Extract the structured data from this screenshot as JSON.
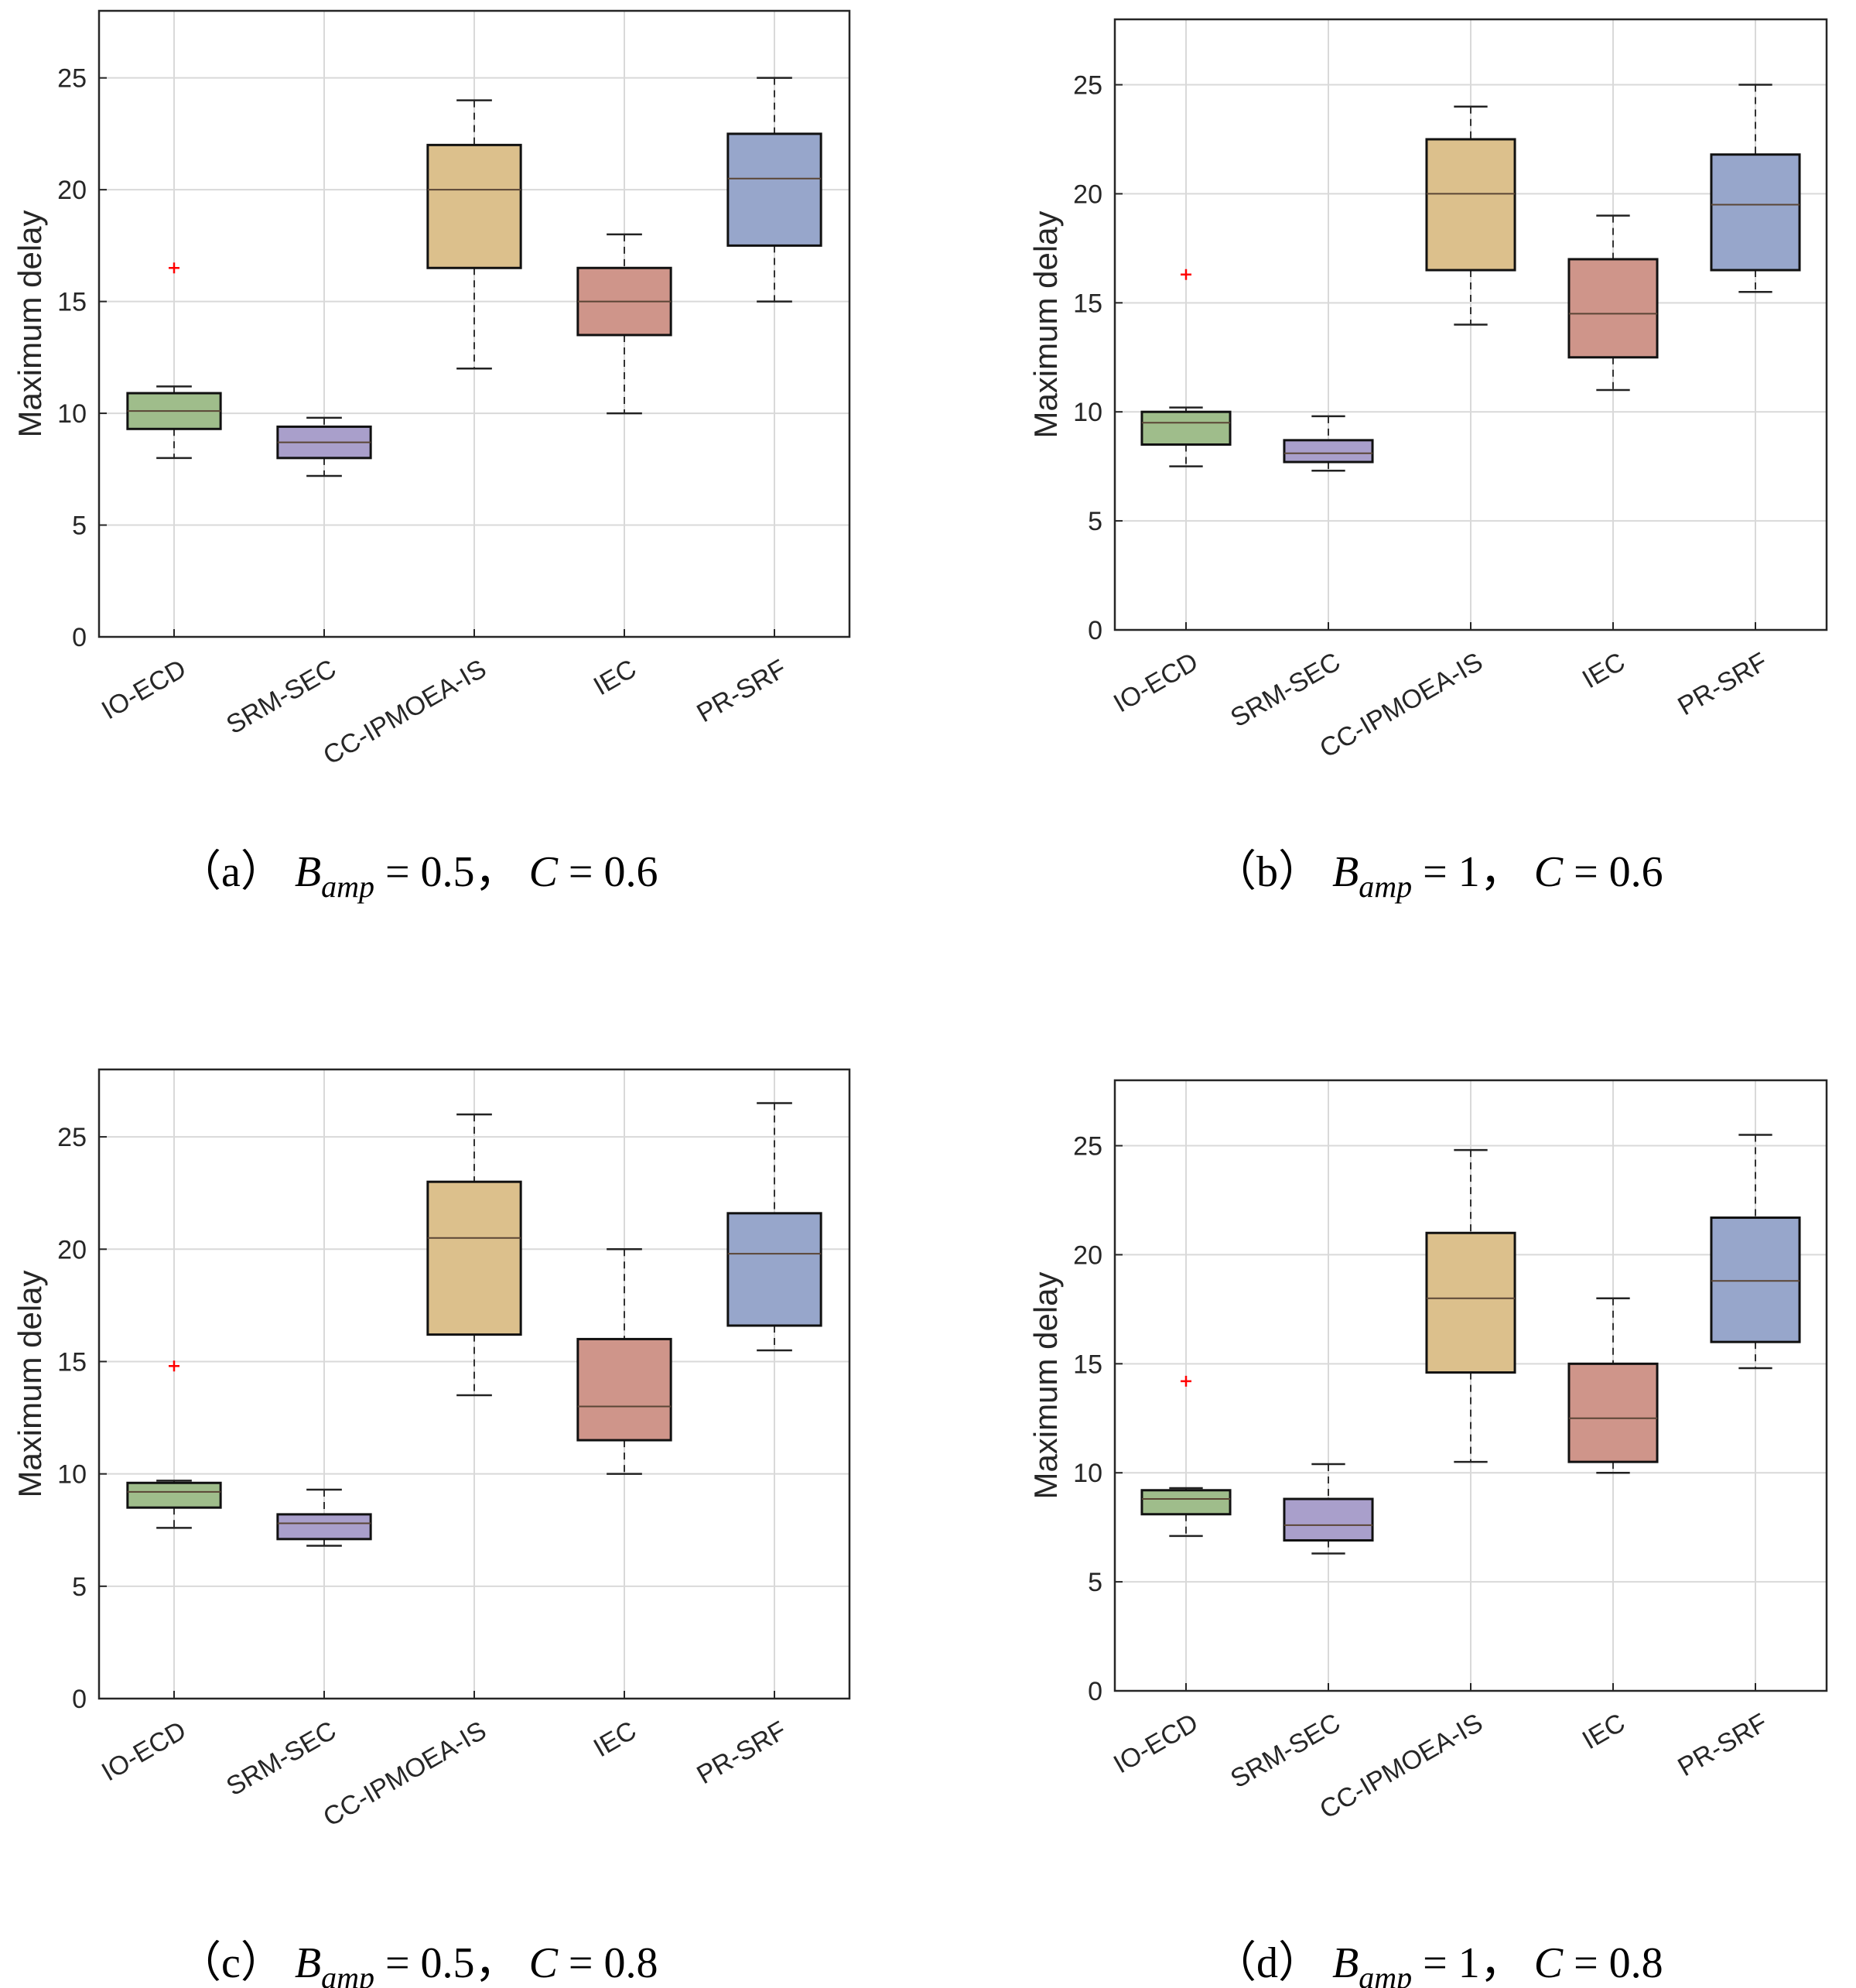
{
  "colors": {
    "IO-ECD": "#9fbd8b",
    "SRM-SEC": "#a99fcb",
    "CC-IPMOEA-IS": "#dcc08c",
    "IEC": "#cf958a",
    "PR-SRF": "#97a6cb",
    "outlier": "#ff0000",
    "grid": "#d9d9d9"
  },
  "chart_data": [
    {
      "type": "box",
      "id": "a",
      "caption": {
        "label": "（a）",
        "var": "B",
        "sub": "amp",
        "eq1": " = 0.5，",
        "var2": "C",
        "eq2": " = 0.6"
      },
      "ylabel": "Maximum delay",
      "ylim": [
        0,
        28
      ],
      "yticks": [
        0,
        5,
        10,
        15,
        20,
        25
      ],
      "categories": [
        "IO-ECD",
        "SRM-SEC",
        "CC-IPMOEA-IS",
        "IEC",
        "PR-SRF"
      ],
      "boxes": [
        {
          "min": 8.0,
          "q1": 9.3,
          "median": 10.1,
          "q3": 10.9,
          "max": 11.2,
          "outliers": [
            16.5
          ]
        },
        {
          "min": 7.2,
          "q1": 8.0,
          "median": 8.7,
          "q3": 9.4,
          "max": 9.8,
          "outliers": []
        },
        {
          "min": 12.0,
          "q1": 16.5,
          "median": 20.0,
          "q3": 22.0,
          "max": 24.0,
          "outliers": []
        },
        {
          "min": 10.0,
          "q1": 13.5,
          "median": 15.0,
          "q3": 16.5,
          "max": 18.0,
          "outliers": []
        },
        {
          "min": 15.0,
          "q1": 17.5,
          "median": 20.5,
          "q3": 22.5,
          "max": 25.0,
          "outliers": []
        }
      ]
    },
    {
      "type": "box",
      "id": "b",
      "caption": {
        "label": "（b）",
        "var": "B",
        "sub": "amp",
        "eq1": " = 1，",
        "var2": "C",
        "eq2": " = 0.6"
      },
      "ylabel": "Maximum delay",
      "ylim": [
        0,
        28
      ],
      "yticks": [
        0,
        5,
        10,
        15,
        20,
        25
      ],
      "categories": [
        "IO-ECD",
        "SRM-SEC",
        "CC-IPMOEA-IS",
        "IEC",
        "PR-SRF"
      ],
      "boxes": [
        {
          "min": 7.5,
          "q1": 8.5,
          "median": 9.5,
          "q3": 10.0,
          "max": 10.2,
          "outliers": [
            16.3
          ]
        },
        {
          "min": 7.3,
          "q1": 7.7,
          "median": 8.1,
          "q3": 8.7,
          "max": 9.8,
          "outliers": []
        },
        {
          "min": 14.0,
          "q1": 16.5,
          "median": 20.0,
          "q3": 22.5,
          "max": 24.0,
          "outliers": []
        },
        {
          "min": 11.0,
          "q1": 12.5,
          "median": 14.5,
          "q3": 17.0,
          "max": 19.0,
          "outliers": []
        },
        {
          "min": 15.5,
          "q1": 16.5,
          "median": 19.5,
          "q3": 21.8,
          "max": 25.0,
          "outliers": []
        }
      ]
    },
    {
      "type": "box",
      "id": "c",
      "caption": {
        "label": "（c）",
        "var": "B",
        "sub": "amp",
        "eq1": " = 0.5，",
        "var2": "C",
        "eq2": " = 0.8"
      },
      "ylabel": "Maximum delay",
      "ylim": [
        0,
        28
      ],
      "yticks": [
        0,
        5,
        10,
        15,
        20,
        25
      ],
      "categories": [
        "IO-ECD",
        "SRM-SEC",
        "CC-IPMOEA-IS",
        "IEC",
        "PR-SRF"
      ],
      "boxes": [
        {
          "min": 7.6,
          "q1": 8.5,
          "median": 9.2,
          "q3": 9.6,
          "max": 9.7,
          "outliers": [
            14.8
          ]
        },
        {
          "min": 6.8,
          "q1": 7.1,
          "median": 7.8,
          "q3": 8.2,
          "max": 9.3,
          "outliers": []
        },
        {
          "min": 13.5,
          "q1": 16.2,
          "median": 20.5,
          "q3": 23.0,
          "max": 26.0,
          "outliers": []
        },
        {
          "min": 10.0,
          "q1": 11.5,
          "median": 13.0,
          "q3": 16.0,
          "max": 20.0,
          "outliers": []
        },
        {
          "min": 15.5,
          "q1": 16.6,
          "median": 19.8,
          "q3": 21.6,
          "max": 26.5,
          "outliers": []
        }
      ]
    },
    {
      "type": "box",
      "id": "d",
      "caption": {
        "label": "（d）",
        "var": "B",
        "sub": "amp",
        "eq1": " = 1，",
        "var2": "C",
        "eq2": " = 0.8"
      },
      "ylabel": "Maximum delay",
      "ylim": [
        0,
        28
      ],
      "yticks": [
        0,
        5,
        10,
        15,
        20,
        25
      ],
      "categories": [
        "IO-ECD",
        "SRM-SEC",
        "CC-IPMOEA-IS",
        "IEC",
        "PR-SRF"
      ],
      "boxes": [
        {
          "min": 7.1,
          "q1": 8.1,
          "median": 8.8,
          "q3": 9.2,
          "max": 9.3,
          "outliers": [
            14.2
          ]
        },
        {
          "min": 6.3,
          "q1": 6.9,
          "median": 7.6,
          "q3": 8.8,
          "max": 10.4,
          "outliers": []
        },
        {
          "min": 10.5,
          "q1": 14.6,
          "median": 18.0,
          "q3": 21.0,
          "max": 24.8,
          "outliers": []
        },
        {
          "min": 10.0,
          "q1": 10.5,
          "median": 12.5,
          "q3": 15.0,
          "max": 18.0,
          "outliers": []
        },
        {
          "min": 14.8,
          "q1": 16.0,
          "median": 18.8,
          "q3": 21.7,
          "max": 25.5,
          "outliers": []
        }
      ]
    }
  ]
}
